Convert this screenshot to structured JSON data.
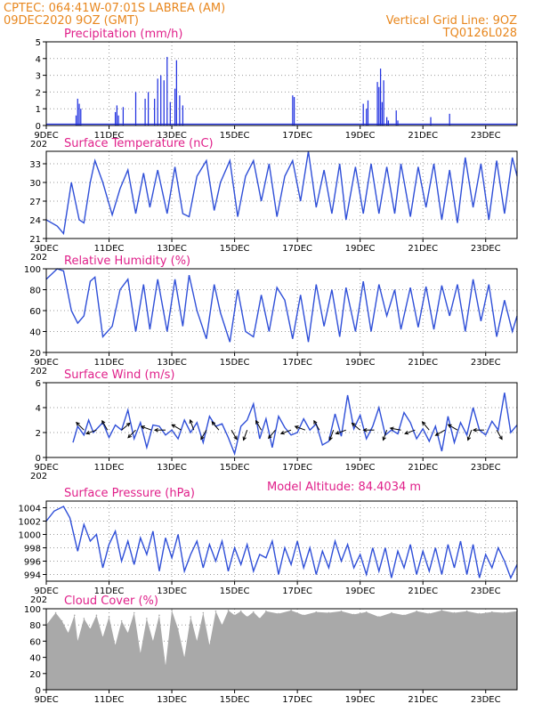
{
  "header": {
    "line1_left": "CPTEC:   064:41W-07:01S   LABREA (AM)",
    "line2_left": "09DEC2020 9OZ (GMT)",
    "line1_right": "Vertical Grid Line: 9OZ",
    "line2_right": "TQ0126L028"
  },
  "model_altitude": "Model Altitude: 84.4034 m",
  "x_ticks": [
    "9DEC",
    "11DEC",
    "13DEC",
    "15DEC",
    "17DEC",
    "19DEC",
    "21DEC",
    "23DEC"
  ],
  "x_tick_day": [
    0,
    2,
    4,
    6,
    8,
    10,
    12,
    14
  ],
  "x_cut_label": "202",
  "colors": {
    "header": "#e8871e",
    "title": "#e0208a",
    "line": "#2f4fd8",
    "bar": "#2030e0",
    "cloud": "#a9a9a9",
    "grid": "#9a9a9a"
  },
  "chart_data": [
    {
      "type": "bar",
      "title": "Precipitation (mm/h)",
      "ylim": [
        0,
        5
      ],
      "yticks": [
        0,
        1,
        2,
        3,
        4,
        5
      ],
      "x_unit": "days since 09DEC 00Z",
      "x": [
        0.95,
        1.0,
        1.05,
        1.1,
        2.2,
        2.25,
        2.3,
        2.45,
        2.85,
        3.15,
        3.25,
        3.45,
        3.55,
        3.65,
        3.75,
        3.85,
        3.95,
        4.1,
        4.15,
        4.25,
        4.35,
        7.85,
        7.9,
        10.1,
        10.2,
        10.25,
        10.55,
        10.6,
        10.65,
        10.7,
        10.75,
        10.85,
        10.9,
        11.15,
        11.2,
        12.25,
        12.85
      ],
      "values": [
        0.6,
        1.6,
        1.3,
        1.0,
        0.8,
        1.2,
        0.6,
        1.1,
        2.0,
        1.6,
        2.0,
        1.6,
        2.8,
        3.0,
        2.7,
        4.1,
        1.4,
        2.2,
        3.9,
        1.8,
        1.2,
        1.8,
        1.7,
        1.3,
        1.0,
        1.5,
        2.6,
        2.3,
        3.4,
        1.4,
        2.7,
        0.5,
        0.3,
        0.9,
        0.3,
        0.5,
        0.7
      ],
      "grid": true
    },
    {
      "type": "line",
      "title": "Surface Temperature (nC)",
      "ylim": [
        21,
        35
      ],
      "yticks": [
        21,
        24,
        27,
        30,
        33
      ],
      "x_unit": "days since 09DEC 00Z",
      "x": [
        0.0,
        0.35,
        0.55,
        0.8,
        1.05,
        1.2,
        1.4,
        1.55,
        1.8,
        2.1,
        2.35,
        2.6,
        2.85,
        3.1,
        3.3,
        3.55,
        3.85,
        4.1,
        4.35,
        4.55,
        4.8,
        5.1,
        5.35,
        5.55,
        5.85,
        6.1,
        6.35,
        6.6,
        6.85,
        7.1,
        7.35,
        7.6,
        7.85,
        8.1,
        8.35,
        8.6,
        8.85,
        9.1,
        9.35,
        9.55,
        9.85,
        10.1,
        10.35,
        10.6,
        10.85,
        11.1,
        11.3,
        11.6,
        11.85,
        12.1,
        12.35,
        12.6,
        12.85,
        13.1,
        13.35,
        13.6,
        13.85,
        14.1,
        14.35,
        14.6,
        14.85,
        15.0
      ],
      "values": [
        24.0,
        23.0,
        21.8,
        30.0,
        24.0,
        23.5,
        30.0,
        33.5,
        30.0,
        24.8,
        29.0,
        32.0,
        25.0,
        31.5,
        26.0,
        32.0,
        25.0,
        32.5,
        25.0,
        24.5,
        31.0,
        33.5,
        25.5,
        30.0,
        33.5,
        24.5,
        31.0,
        33.5,
        27.0,
        33.0,
        24.5,
        31.0,
        33.5,
        27.0,
        35.0,
        26.0,
        32.0,
        25.0,
        33.0,
        24.0,
        32.5,
        25.0,
        33.0,
        25.0,
        32.5,
        25.0,
        33.0,
        24.5,
        32.5,
        26.0,
        33.0,
        24.0,
        32.0,
        23.5,
        34.0,
        26.0,
        33.0,
        24.0,
        33.5,
        25.0,
        34.0,
        31.0
      ],
      "grid": true
    },
    {
      "type": "line",
      "title": "Relative Humidity (%)",
      "ylim": [
        20,
        100
      ],
      "yticks": [
        20,
        40,
        60,
        80,
        100
      ],
      "x_unit": "days since 09DEC 00Z",
      "x": [
        0.0,
        0.35,
        0.55,
        0.8,
        1.0,
        1.2,
        1.4,
        1.55,
        1.8,
        2.1,
        2.35,
        2.6,
        2.85,
        3.1,
        3.3,
        3.55,
        3.85,
        4.1,
        4.35,
        4.55,
        4.8,
        5.1,
        5.35,
        5.55,
        5.85,
        6.1,
        6.35,
        6.6,
        6.85,
        7.1,
        7.35,
        7.6,
        7.85,
        8.1,
        8.35,
        8.6,
        8.85,
        9.1,
        9.35,
        9.55,
        9.85,
        10.1,
        10.35,
        10.6,
        10.85,
        11.1,
        11.3,
        11.6,
        11.85,
        12.1,
        12.35,
        12.6,
        12.85,
        13.1,
        13.35,
        13.6,
        13.85,
        14.1,
        14.35,
        14.6,
        14.85,
        15.0
      ],
      "values": [
        90.0,
        100.0,
        98.0,
        60.0,
        48.0,
        55.0,
        88.0,
        92.0,
        35.0,
        45.0,
        80.0,
        90.0,
        40.0,
        85.0,
        42.0,
        90.0,
        40.0,
        90.0,
        45.0,
        94.0,
        60.0,
        33.0,
        85.0,
        58.0,
        30.0,
        80.0,
        40.0,
        35.0,
        75.0,
        40.0,
        82.0,
        70.0,
        33.0,
        75.0,
        30.0,
        85.0,
        45.0,
        80.0,
        35.0,
        82.0,
        40.0,
        88.0,
        40.0,
        85.0,
        55.0,
        80.0,
        42.0,
        82.0,
        44.0,
        83.0,
        42.0,
        84.0,
        55.0,
        85.0,
        40.0,
        90.0,
        50.0,
        85.0,
        35.0,
        70.0,
        40.0,
        55.0
      ],
      "grid": true
    },
    {
      "type": "line",
      "title": "Surface Wind (m/s)",
      "ylim": [
        0,
        6
      ],
      "yticks": [
        0,
        2,
        4,
        6
      ],
      "x_unit": "days since 09DEC 00Z",
      "x": [
        0.85,
        1.0,
        1.2,
        1.35,
        1.5,
        1.65,
        1.8,
        2.0,
        2.2,
        2.4,
        2.6,
        2.8,
        3.0,
        3.2,
        3.4,
        3.6,
        3.8,
        4.0,
        4.2,
        4.4,
        4.6,
        4.8,
        5.0,
        5.2,
        5.4,
        5.6,
        5.8,
        6.0,
        6.2,
        6.4,
        6.6,
        6.8,
        7.0,
        7.2,
        7.4,
        7.6,
        7.8,
        8.0,
        8.2,
        8.4,
        8.6,
        8.8,
        9.0,
        9.2,
        9.4,
        9.6,
        9.8,
        10.0,
        10.2,
        10.4,
        10.6,
        10.8,
        11.0,
        11.2,
        11.4,
        11.6,
        11.8,
        12.0,
        12.2,
        12.4,
        12.6,
        12.8,
        13.0,
        13.2,
        13.4,
        13.6,
        13.8,
        14.0,
        14.2,
        14.4,
        14.6,
        14.8,
        15.0
      ],
      "values": [
        1.2,
        2.5,
        1.8,
        3.0,
        2.0,
        2.4,
        2.8,
        1.6,
        2.6,
        2.2,
        3.8,
        1.5,
        2.8,
        0.8,
        2.6,
        2.5,
        1.8,
        2.2,
        1.5,
        3.0,
        2.0,
        2.8,
        1.2,
        3.3,
        2.5,
        2.7,
        1.6,
        0.3,
        2.5,
        3.0,
        4.3,
        1.5,
        3.1,
        0.8,
        3.3,
        2.4,
        1.8,
        2.0,
        3.1,
        2.2,
        2.7,
        1.0,
        1.3,
        3.5,
        1.7,
        5.0,
        2.3,
        3.4,
        1.5,
        2.5,
        4.0,
        1.8,
        2.2,
        1.9,
        3.6,
        2.8,
        1.5,
        2.3,
        1.3,
        2.5,
        0.5,
        3.3,
        1.2,
        2.8,
        1.8,
        4.0,
        2.2,
        1.8,
        2.9,
        2.2,
        5.2,
        2.0,
        2.6
      ],
      "barbs": [
        {
          "x": 1.2,
          "dir_deg": 135
        },
        {
          "x": 1.6,
          "dir_deg": 200
        },
        {
          "x": 1.95,
          "dir_deg": 120
        },
        {
          "x": 2.4,
          "dir_deg": 40
        },
        {
          "x": 2.85,
          "dir_deg": 225
        },
        {
          "x": 3.35,
          "dir_deg": 160
        },
        {
          "x": 3.8,
          "dir_deg": 180
        },
        {
          "x": 4.3,
          "dir_deg": 150
        },
        {
          "x": 4.7,
          "dir_deg": 110
        },
        {
          "x": 5.1,
          "dir_deg": 240
        },
        {
          "x": 5.5,
          "dir_deg": 130
        },
        {
          "x": 5.9,
          "dir_deg": 300
        },
        {
          "x": 6.4,
          "dir_deg": 250
        },
        {
          "x": 6.85,
          "dir_deg": 120
        },
        {
          "x": 7.3,
          "dir_deg": 230
        },
        {
          "x": 7.8,
          "dir_deg": 200
        },
        {
          "x": 8.25,
          "dir_deg": 160
        },
        {
          "x": 8.7,
          "dir_deg": 120
        },
        {
          "x": 9.15,
          "dir_deg": 250
        },
        {
          "x": 9.55,
          "dir_deg": 200
        },
        {
          "x": 10.0,
          "dir_deg": 140
        },
        {
          "x": 10.45,
          "dir_deg": 180
        },
        {
          "x": 10.85,
          "dir_deg": 250
        },
        {
          "x": 11.3,
          "dir_deg": 170
        },
        {
          "x": 11.75,
          "dir_deg": 200
        },
        {
          "x": 12.2,
          "dir_deg": 130
        },
        {
          "x": 12.7,
          "dir_deg": 210
        },
        {
          "x": 13.1,
          "dir_deg": 150
        },
        {
          "x": 13.55,
          "dir_deg": 250
        },
        {
          "x": 13.95,
          "dir_deg": 180
        },
        {
          "x": 14.35,
          "dir_deg": 300
        }
      ],
      "grid": true
    },
    {
      "type": "line",
      "title": "Surface Pressure (hPa)",
      "ylim": [
        993,
        1005
      ],
      "yticks": [
        994,
        996,
        998,
        1000,
        1002,
        1004
      ],
      "x_unit": "days since 09DEC 00Z",
      "x": [
        0.0,
        0.25,
        0.55,
        0.75,
        1.0,
        1.2,
        1.4,
        1.6,
        1.8,
        2.0,
        2.2,
        2.4,
        2.6,
        2.8,
        3.0,
        3.2,
        3.4,
        3.6,
        3.8,
        4.0,
        4.2,
        4.4,
        4.6,
        4.8,
        5.0,
        5.2,
        5.4,
        5.6,
        5.8,
        6.0,
        6.2,
        6.4,
        6.6,
        6.8,
        7.0,
        7.2,
        7.4,
        7.6,
        7.8,
        8.0,
        8.2,
        8.4,
        8.6,
        8.8,
        9.0,
        9.2,
        9.4,
        9.6,
        9.8,
        10.0,
        10.2,
        10.4,
        10.6,
        10.8,
        11.0,
        11.2,
        11.4,
        11.6,
        11.8,
        12.0,
        12.2,
        12.4,
        12.6,
        12.8,
        13.0,
        13.2,
        13.4,
        13.6,
        13.8,
        14.0,
        14.2,
        14.4,
        14.6,
        14.8,
        15.0
      ],
      "values": [
        1002.0,
        1003.5,
        1004.2,
        1002.5,
        997.5,
        1001.5,
        999.0,
        1000.0,
        995.0,
        998.5,
        1000.5,
        996.0,
        999.0,
        995.5,
        999.5,
        997.0,
        1000.5,
        994.5,
        999.5,
        996.5,
        1000.0,
        994.5,
        997.0,
        999.0,
        995.0,
        998.5,
        996.0,
        999.0,
        994.5,
        998.0,
        995.5,
        998.5,
        994.5,
        997.0,
        996.5,
        999.0,
        994.0,
        998.0,
        995.5,
        999.0,
        995.0,
        998.0,
        994.0,
        997.5,
        995.0,
        999.0,
        996.0,
        998.5,
        995.0,
        997.0,
        994.0,
        998.0,
        994.5,
        998.0,
        993.5,
        997.5,
        995.0,
        998.5,
        994.0,
        997.5,
        994.5,
        998.0,
        994.0,
        998.5,
        995.0,
        999.0,
        994.0,
        998.5,
        993.5,
        997.0,
        995.0,
        998.0,
        996.0,
        993.5,
        995.5
      ],
      "grid": true
    },
    {
      "type": "area",
      "title": "Cloud Cover (%)",
      "ylim": [
        0,
        100
      ],
      "yticks": [
        0,
        20,
        40,
        60,
        80,
        100
      ],
      "x_unit": "days since 09DEC 00Z",
      "x": [
        0.0,
        0.3,
        0.5,
        0.7,
        0.9,
        1.0,
        1.2,
        1.4,
        1.6,
        1.8,
        2.0,
        2.2,
        2.4,
        2.6,
        2.8,
        3.0,
        3.2,
        3.4,
        3.6,
        3.8,
        4.0,
        4.2,
        4.4,
        4.6,
        4.8,
        5.0,
        5.2,
        5.4,
        5.6,
        5.8,
        6.0,
        6.2,
        6.4,
        6.6,
        6.8,
        7.0,
        7.4,
        7.8,
        8.2,
        8.6,
        9.0,
        9.4,
        9.8,
        10.2,
        10.6,
        11.0,
        11.4,
        11.8,
        12.2,
        12.6,
        13.0,
        13.4,
        13.8,
        14.2,
        14.6,
        15.0
      ],
      "values": [
        80.0,
        95.0,
        85.0,
        70.0,
        92.0,
        60.0,
        88.0,
        75.0,
        92.0,
        65.0,
        90.0,
        55.0,
        85.0,
        70.0,
        95.0,
        45.0,
        88.0,
        60.0,
        92.0,
        30.0,
        98.0,
        75.0,
        40.0,
        90.0,
        60.0,
        95.0,
        55.0,
        97.0,
        80.0,
        98.0,
        92.0,
        97.0,
        90.0,
        96.0,
        88.0,
        97.0,
        94.0,
        98.0,
        92.0,
        96.0,
        95.0,
        97.0,
        93.0,
        96.0,
        90.0,
        95.0,
        92.0,
        97.0,
        94.0,
        98.0,
        95.0,
        97.0,
        94.0,
        96.0,
        95.0,
        97.0
      ],
      "grid": true
    }
  ]
}
